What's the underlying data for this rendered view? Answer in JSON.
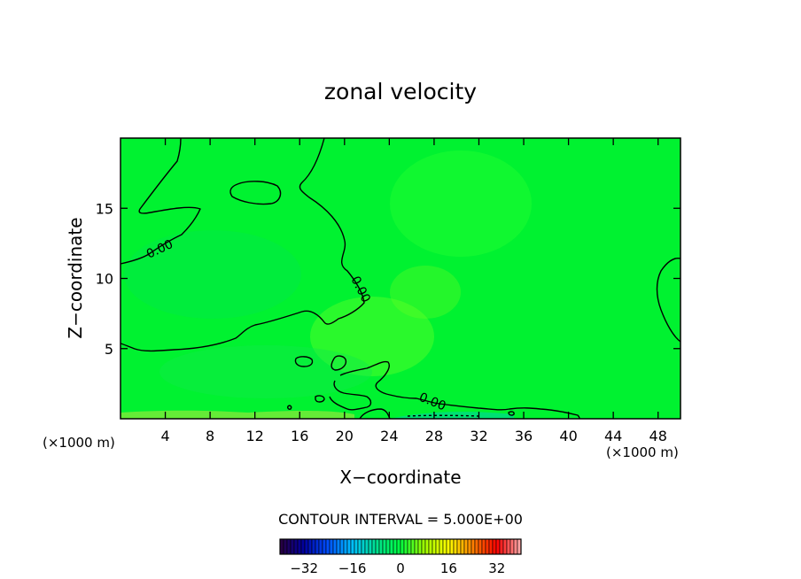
{
  "chart_data": {
    "type": "heatmap",
    "title": "zonal velocity",
    "xlabel": "X−coordinate",
    "ylabel": "Z−coordinate",
    "x_unit_label_left": "(×1000 m)",
    "x_unit_label_right": "(×1000 m)",
    "xlim": [
      0,
      50
    ],
    "ylim": [
      0,
      20
    ],
    "x_ticks": [
      4,
      8,
      12,
      16,
      20,
      24,
      28,
      32,
      36,
      40,
      44,
      48
    ],
    "y_ticks": [
      5,
      10,
      15
    ],
    "x_tick_labels": [
      "4",
      "8",
      "12",
      "16",
      "20",
      "24",
      "28",
      "32",
      "36",
      "40",
      "44",
      "48"
    ],
    "y_tick_labels": [
      "5",
      "10",
      "15"
    ],
    "contour_interval_text": "CONTOUR INTERVAL = 5.000E+00",
    "contour_interval": 5.0,
    "contour_label_text": "0.00",
    "contour_level": 0.0,
    "field_value_range": [
      -3,
      5
    ],
    "colormap": [
      "#2a0040",
      "#0000a0",
      "#0050ff",
      "#00c0ff",
      "#00e090",
      "#00ff40",
      "#a0ff00",
      "#ffff00",
      "#ff8000",
      "#ff0000",
      "#ffb0b0"
    ],
    "field_color": "#00f230",
    "colorbar": {
      "range": [
        -40,
        40
      ],
      "tick_values": [
        -32,
        -16,
        0,
        16,
        32
      ],
      "tick_labels": [
        "−32",
        "−16",
        "0",
        "16",
        "32"
      ]
    },
    "grid": false
  }
}
